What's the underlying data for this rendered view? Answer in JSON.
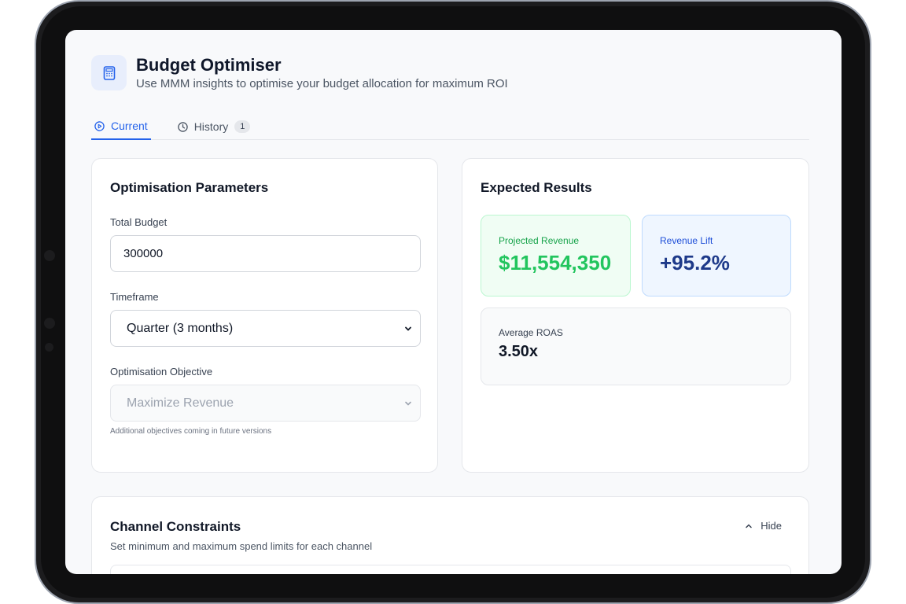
{
  "app": {
    "title": "Budget Optimiser",
    "subtitle": "Use MMM insights to optimise your budget allocation for maximum ROI",
    "icon": "calculator-icon"
  },
  "tabs": [
    {
      "label": "Current",
      "icon": "play-circle-icon",
      "active": true
    },
    {
      "label": "History",
      "icon": "clock-icon",
      "badge": "1",
      "active": false
    }
  ],
  "parameters": {
    "title": "Optimisation Parameters",
    "total_budget": {
      "label": "Total Budget",
      "value": "300000"
    },
    "timeframe": {
      "label": "Timeframe",
      "value": "Quarter (3 months)"
    },
    "objective": {
      "label": "Optimisation Objective",
      "value": "Maximize Revenue",
      "hint": "Additional objectives coming in future versions",
      "disabled": true
    }
  },
  "results": {
    "title": "Expected Results",
    "projected_revenue": {
      "label": "Projected Revenue",
      "value": "$11,554,350",
      "color": "#22c55e"
    },
    "revenue_lift": {
      "label": "Revenue Lift",
      "value": "+95.2%",
      "color": "#1e3a8a"
    },
    "average_roas": {
      "label": "Average ROAS",
      "value": "3.50x"
    }
  },
  "constraints": {
    "title": "Channel Constraints",
    "subtitle": "Set minimum and maximum spend limits for each channel",
    "toggle_label": "Hide",
    "toggle_icon": "chevron-up-icon"
  },
  "colors": {
    "accent": "#2563eb",
    "success": "#22c55e",
    "navy": "#1e3a8a"
  }
}
